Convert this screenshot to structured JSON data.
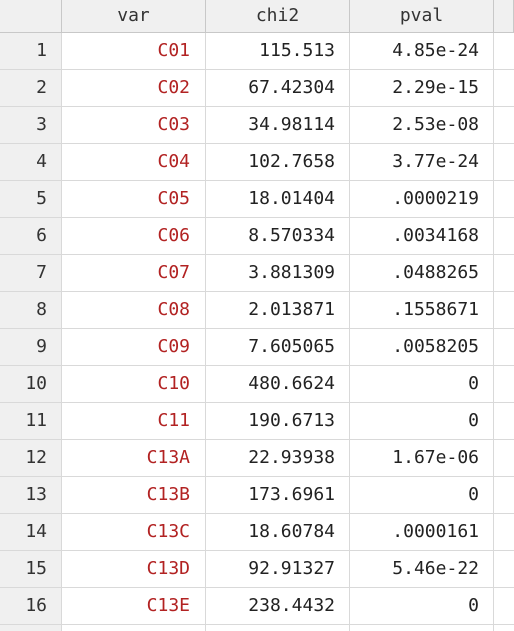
{
  "columns": {
    "index": "",
    "var": "var",
    "chi2": "chi2",
    "pval": "pval"
  },
  "rows": [
    {
      "idx": "1",
      "var": "C01",
      "chi2": "115.513",
      "pval": "4.85e-24"
    },
    {
      "idx": "2",
      "var": "C02",
      "chi2": "67.42304",
      "pval": "2.29e-15"
    },
    {
      "idx": "3",
      "var": "C03",
      "chi2": "34.98114",
      "pval": "2.53e-08"
    },
    {
      "idx": "4",
      "var": "C04",
      "chi2": "102.7658",
      "pval": "3.77e-24"
    },
    {
      "idx": "5",
      "var": "C05",
      "chi2": "18.01404",
      "pval": ".0000219"
    },
    {
      "idx": "6",
      "var": "C06",
      "chi2": "8.570334",
      "pval": ".0034168"
    },
    {
      "idx": "7",
      "var": "C07",
      "chi2": "3.881309",
      "pval": ".0488265"
    },
    {
      "idx": "8",
      "var": "C08",
      "chi2": "2.013871",
      "pval": ".1558671"
    },
    {
      "idx": "9",
      "var": "C09",
      "chi2": "7.605065",
      "pval": ".0058205"
    },
    {
      "idx": "10",
      "var": "C10",
      "chi2": "480.6624",
      "pval": "0"
    },
    {
      "idx": "11",
      "var": "C11",
      "chi2": "190.6713",
      "pval": "0"
    },
    {
      "idx": "12",
      "var": "C13A",
      "chi2": "22.93938",
      "pval": "1.67e-06"
    },
    {
      "idx": "13",
      "var": "C13B",
      "chi2": "173.6961",
      "pval": "0"
    },
    {
      "idx": "14",
      "var": "C13C",
      "chi2": "18.60784",
      "pval": ".0000161"
    },
    {
      "idx": "15",
      "var": "C13D",
      "chi2": "92.91327",
      "pval": "5.46e-22"
    },
    {
      "idx": "16",
      "var": "C13E",
      "chi2": "238.4432",
      "pval": "0"
    }
  ],
  "colors": {
    "string_value": "#b22222",
    "numeric_value": "#222222",
    "header_bg": "#f0f0f0",
    "grid_line": "#d9d9d9"
  }
}
